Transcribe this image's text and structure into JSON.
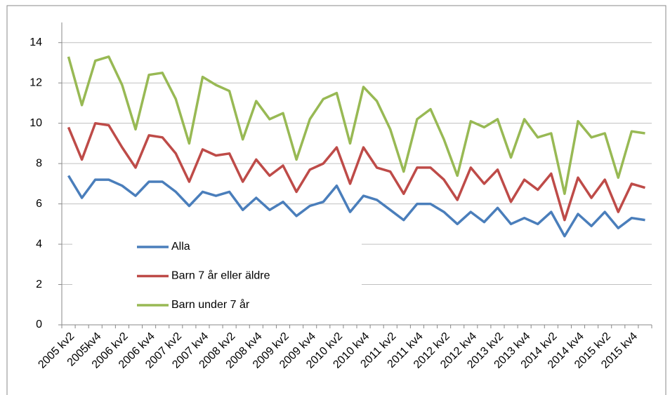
{
  "chart_data": {
    "type": "line",
    "categories": [
      "2005 kv2",
      null,
      "2005kv4",
      null,
      "2006 kv2",
      null,
      "2006 kv4",
      null,
      "2007 kv2",
      null,
      "2007 kv4",
      null,
      "2008 kv2",
      null,
      "2008 kv4",
      null,
      "2009 kv2",
      null,
      "2009 kv4",
      null,
      "2010 kv2",
      null,
      "2010 kv4",
      null,
      "2011 kv2",
      null,
      "2011 kv4",
      null,
      "2012 kv2",
      null,
      "2012 kv4",
      null,
      "2013 kv2",
      null,
      "2013 kv4",
      null,
      "2014 kv2",
      null,
      "2014 kv4",
      null,
      "2015 kv2",
      null,
      "2015 kv4",
      null
    ],
    "series": [
      {
        "name": "Alla",
        "color": "#4a7ebb",
        "values": [
          7.4,
          6.3,
          7.2,
          7.2,
          6.9,
          6.4,
          7.1,
          7.1,
          6.6,
          5.9,
          6.6,
          6.4,
          6.6,
          5.7,
          6.3,
          5.7,
          6.1,
          5.4,
          5.9,
          6.1,
          6.9,
          5.6,
          6.4,
          6.2,
          5.7,
          5.2,
          6.0,
          6.0,
          5.6,
          5.0,
          5.6,
          5.1,
          5.8,
          5.0,
          5.3,
          5.0,
          5.6,
          4.4,
          5.5,
          4.9,
          5.6,
          4.8,
          5.3,
          5.2
        ]
      },
      {
        "name": "Barn 7 år eller äldre",
        "color": "#be4b48",
        "values": [
          9.8,
          8.2,
          10.0,
          9.9,
          8.8,
          7.8,
          9.4,
          9.3,
          8.5,
          7.1,
          8.7,
          8.4,
          8.5,
          7.1,
          8.2,
          7.4,
          7.9,
          6.6,
          7.7,
          8.0,
          8.8,
          7.0,
          8.8,
          7.8,
          7.6,
          6.5,
          7.8,
          7.8,
          7.2,
          6.2,
          7.8,
          7.0,
          7.7,
          6.1,
          7.2,
          6.7,
          7.5,
          5.2,
          7.3,
          6.3,
          7.2,
          5.6,
          7.0,
          6.8
        ]
      },
      {
        "name": "Barn under 7 år",
        "color": "#98b954",
        "values": [
          13.3,
          10.9,
          13.1,
          13.3,
          11.9,
          9.7,
          12.4,
          12.5,
          11.2,
          9.0,
          12.3,
          11.9,
          11.6,
          9.2,
          11.1,
          10.2,
          10.5,
          8.2,
          10.2,
          11.2,
          11.5,
          9.0,
          11.8,
          11.1,
          9.7,
          7.6,
          10.2,
          10.7,
          9.2,
          7.4,
          10.1,
          9.8,
          10.2,
          8.3,
          10.2,
          9.3,
          9.5,
          6.5,
          10.1,
          9.3,
          9.5,
          7.3,
          9.6,
          9.5
        ]
      }
    ],
    "ylim": [
      0,
      15
    ],
    "yticks": [
      0,
      2,
      4,
      6,
      8,
      10,
      12,
      14
    ],
    "grid": true,
    "legend": "lower left"
  }
}
